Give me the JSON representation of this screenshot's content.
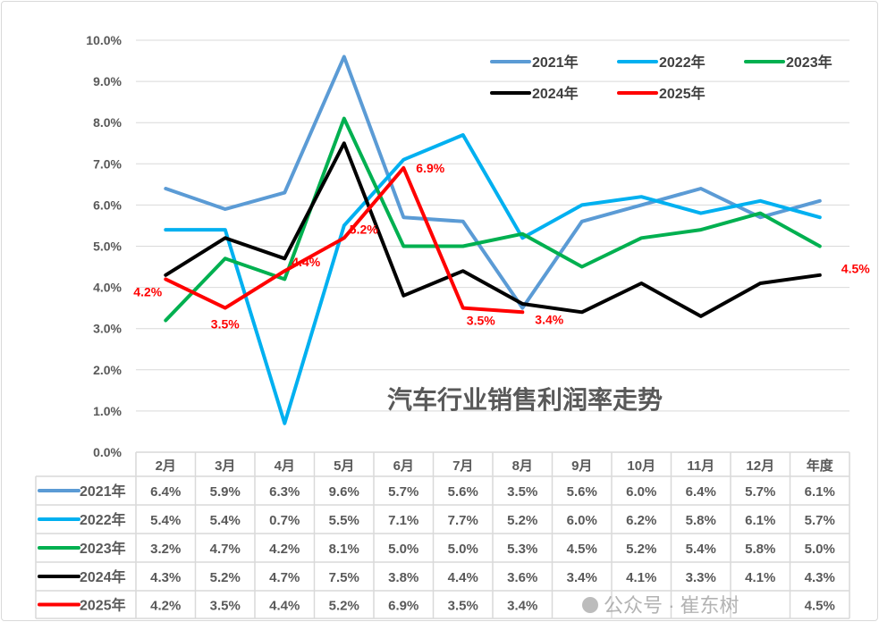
{
  "chart_data": {
    "type": "line",
    "title": "汽车行业销售利润率走势",
    "categories": [
      "2月",
      "3月",
      "4月",
      "5月",
      "6月",
      "7月",
      "8月",
      "9月",
      "10月",
      "11月",
      "12月",
      "年度"
    ],
    "ylim": [
      0,
      10
    ],
    "yticks": [
      "0.0%",
      "1.0%",
      "2.0%",
      "3.0%",
      "4.0%",
      "5.0%",
      "6.0%",
      "7.0%",
      "8.0%",
      "9.0%",
      "10.0%"
    ],
    "grid": true,
    "legend_position": "top-right",
    "data_table": true,
    "series": [
      {
        "name": "2021年",
        "color": "#5b9bd5",
        "values": [
          6.4,
          5.9,
          6.3,
          9.6,
          5.7,
          5.6,
          3.5,
          5.6,
          6.0,
          6.4,
          5.7,
          6.1
        ]
      },
      {
        "name": "2022年",
        "color": "#00b0f0",
        "values": [
          5.4,
          5.4,
          0.7,
          5.5,
          7.1,
          7.7,
          5.2,
          6.0,
          6.2,
          5.8,
          6.1,
          5.7
        ]
      },
      {
        "name": "2023年",
        "color": "#00b050",
        "values": [
          3.2,
          4.7,
          4.2,
          8.1,
          5.0,
          5.0,
          5.3,
          4.5,
          5.2,
          5.4,
          5.8,
          5.0
        ]
      },
      {
        "name": "2024年",
        "color": "#000000",
        "values": [
          4.3,
          5.2,
          4.7,
          7.5,
          3.8,
          4.4,
          3.6,
          3.4,
          4.1,
          3.3,
          4.1,
          4.3
        ]
      },
      {
        "name": "2025年",
        "color": "#ff0000",
        "values": [
          4.2,
          3.5,
          4.4,
          5.2,
          6.9,
          3.5,
          3.4,
          null,
          null,
          null,
          null,
          4.5
        ],
        "data_labels": [
          "4.2%",
          "3.5%",
          "4.4%",
          "5.2%",
          "6.9%",
          "3.5%",
          "3.4%",
          null,
          null,
          null,
          null,
          "4.5%"
        ]
      }
    ]
  },
  "watermark": "公众号 · 崔东树"
}
